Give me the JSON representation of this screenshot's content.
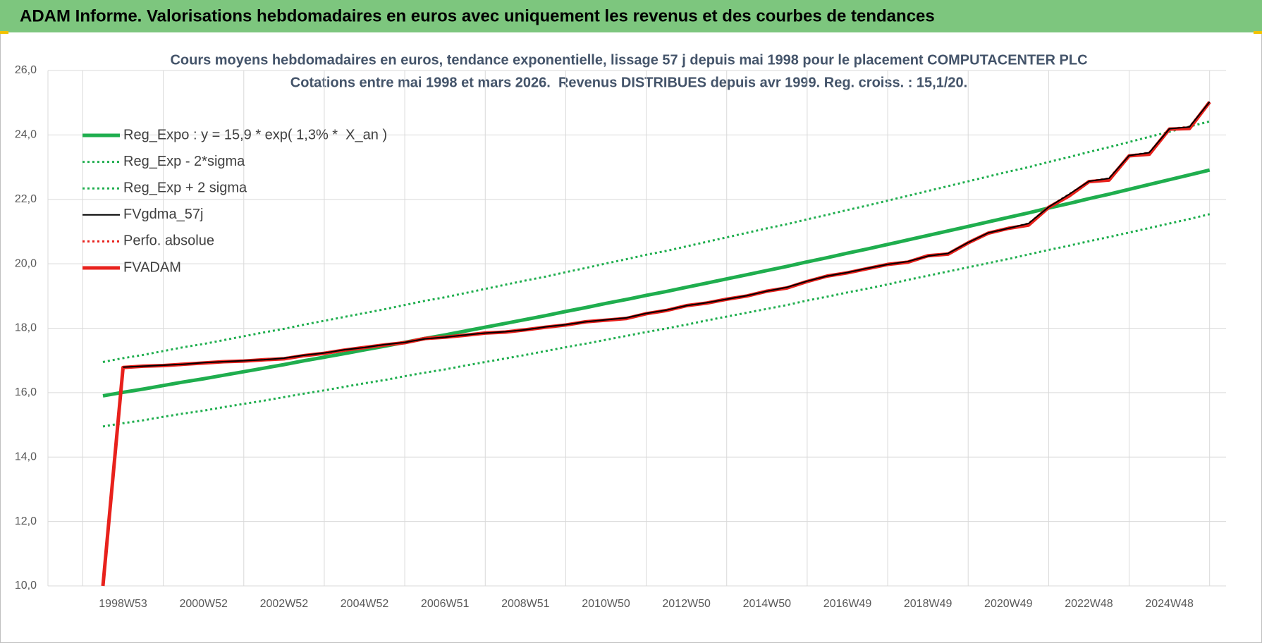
{
  "header": {
    "title": "ADAM Informe. Valorisations hebdomadaires en euros avec uniquement les revenus et des courbes de tendances"
  },
  "chart_data": {
    "type": "line",
    "title": "Cours moyens hebdomadaires en euros, tendance exponentielle, lissage 57 j depuis mai 1998 pour le placement COMPUTACENTER PLC",
    "subtitle": "Cotations entre mai 1998 et mars 2026.  Revenus DISTRIBUES depuis avr 1999. Reg. croiss. : 15,1/20.",
    "categories": [
      null,
      "1998W53",
      null,
      null,
      null,
      "2000W52",
      null,
      null,
      null,
      "2002W52",
      null,
      null,
      null,
      "2004W52",
      null,
      null,
      null,
      "2006W51",
      null,
      null,
      null,
      "2008W51",
      null,
      null,
      null,
      "2010W50",
      null,
      null,
      null,
      "2012W50",
      null,
      null,
      null,
      "2014W50",
      null,
      null,
      null,
      "2016W49",
      null,
      null,
      null,
      "2018W49",
      null,
      null,
      null,
      "2020W49",
      null,
      null,
      null,
      "2022W48",
      null,
      null,
      null,
      "2024W48",
      null,
      null
    ],
    "ylim": [
      10,
      26
    ],
    "yticks": [
      {
        "value": 10,
        "label": "10,0"
      },
      {
        "value": 12,
        "label": "12,0"
      },
      {
        "value": 14,
        "label": "14,0"
      },
      {
        "value": 16,
        "label": "16,0"
      },
      {
        "value": 18,
        "label": "18,0"
      },
      {
        "value": 20,
        "label": "20,0"
      },
      {
        "value": 22,
        "label": "22,0"
      },
      {
        "value": 24,
        "label": "24,0"
      },
      {
        "value": 26,
        "label": "26,0"
      }
    ],
    "grid": true,
    "legend": "top-left",
    "series": [
      {
        "name": "Reg_Expo : y = 15,9 * exp( 1,3% *  X_an )",
        "color": "#1fae4e",
        "line": "thick",
        "values": [
          15.9,
          16.01,
          16.11,
          16.22,
          16.33,
          16.43,
          16.54,
          16.65,
          16.76,
          16.87,
          16.99,
          17.1,
          17.21,
          17.33,
          17.44,
          17.56,
          17.68,
          17.79,
          17.91,
          18.03,
          18.15,
          18.27,
          18.39,
          18.52,
          18.64,
          18.77,
          18.89,
          19.02,
          19.14,
          19.27,
          19.4,
          19.53,
          19.66,
          19.79,
          19.92,
          20.06,
          20.19,
          20.33,
          20.46,
          20.6,
          20.74,
          20.88,
          21.02,
          21.16,
          21.3,
          21.44,
          21.58,
          21.73,
          21.87,
          22.02,
          22.16,
          22.31,
          22.46,
          22.61,
          22.76,
          22.91
        ]
      },
      {
        "name": "Reg_Exp - 2*sigma",
        "color": "#1fae4e",
        "line": "dotted",
        "values": [
          14.95,
          15.05,
          15.14,
          15.25,
          15.35,
          15.44,
          15.55,
          15.65,
          15.75,
          15.86,
          15.97,
          16.07,
          16.18,
          16.29,
          16.39,
          16.51,
          16.62,
          16.72,
          16.84,
          16.95,
          17.06,
          17.17,
          17.29,
          17.41,
          17.52,
          17.64,
          17.76,
          17.88,
          17.99,
          18.11,
          18.24,
          18.36,
          18.48,
          18.6,
          18.72,
          18.86,
          18.98,
          19.11,
          19.23,
          19.36,
          19.5,
          19.63,
          19.76,
          19.89,
          20.02,
          20.15,
          20.29,
          20.43,
          20.56,
          20.7,
          20.83,
          20.97,
          21.11,
          21.25,
          21.39,
          21.54
        ]
      },
      {
        "name": "Reg_Exp + 2 sigma",
        "color": "#1fae4e",
        "line": "dotted",
        "values": [
          16.95,
          17.07,
          17.17,
          17.29,
          17.41,
          17.51,
          17.63,
          17.75,
          17.87,
          17.98,
          18.11,
          18.23,
          18.35,
          18.47,
          18.59,
          18.72,
          18.85,
          18.96,
          19.09,
          19.22,
          19.35,
          19.48,
          19.6,
          19.74,
          19.87,
          20.01,
          20.14,
          20.28,
          20.4,
          20.54,
          20.68,
          20.82,
          20.96,
          21.1,
          21.23,
          21.38,
          21.52,
          21.67,
          21.81,
          21.96,
          22.11,
          22.26,
          22.41,
          22.56,
          22.71,
          22.86,
          23.0,
          23.16,
          23.31,
          23.47,
          23.62,
          23.78,
          23.94,
          24.1,
          24.26,
          24.42
        ]
      },
      {
        "name": "FVgdma_57j",
        "color": "#000000",
        "line": "solid",
        "values": [
          null,
          16.79,
          16.82,
          16.85,
          16.88,
          16.93,
          16.96,
          16.99,
          17.02,
          17.07,
          17.16,
          17.23,
          17.33,
          17.4,
          17.49,
          17.56,
          17.67,
          17.72,
          17.79,
          17.85,
          17.89,
          17.95,
          18.04,
          18.11,
          18.2,
          18.26,
          18.32,
          18.46,
          18.56,
          18.7,
          18.79,
          18.9,
          19.01,
          19.15,
          19.27,
          19.46,
          19.62,
          19.73,
          19.86,
          19.98,
          20.07,
          20.24,
          20.32,
          20.66,
          20.96,
          21.1,
          21.25,
          21.76,
          22.15,
          22.56,
          22.65,
          23.36,
          23.45,
          24.19,
          24.25,
          25.03
        ]
      },
      {
        "name": "Perfo. absolue",
        "color": "#e8211c",
        "line": "dotted",
        "values": [
          null,
          16.79,
          16.82,
          16.85,
          16.88,
          16.93,
          16.96,
          16.99,
          17.02,
          17.07,
          17.16,
          17.23,
          17.33,
          17.4,
          17.49,
          17.56,
          17.67,
          17.72,
          17.79,
          17.85,
          17.89,
          17.95,
          18.04,
          18.11,
          18.2,
          18.26,
          18.32,
          18.46,
          18.56,
          18.7,
          18.79,
          18.9,
          19.01,
          19.15,
          19.27,
          19.46,
          19.62,
          19.73,
          19.86,
          19.98,
          20.07,
          20.24,
          20.32,
          20.66,
          20.96,
          21.1,
          21.25,
          21.76,
          22.15,
          22.56,
          22.65,
          23.36,
          23.45,
          24.19,
          24.25,
          25.03
        ]
      },
      {
        "name": "FVADAM",
        "color": "#e8211c",
        "line": "thick",
        "values": [
          10,
          16.78,
          16.82,
          16.84,
          16.88,
          16.92,
          16.96,
          16.98,
          17.02,
          17.05,
          17.15,
          17.22,
          17.32,
          17.4,
          17.48,
          17.55,
          17.68,
          17.72,
          17.78,
          17.85,
          17.88,
          17.95,
          18.03,
          18.1,
          18.2,
          18.25,
          18.3,
          18.45,
          18.55,
          18.7,
          18.78,
          18.9,
          19.0,
          19.15,
          19.25,
          19.45,
          19.62,
          19.72,
          19.85,
          19.98,
          20.05,
          20.25,
          20.3,
          20.65,
          20.95,
          21.1,
          21.2,
          21.75,
          22.1,
          22.55,
          22.6,
          23.35,
          23.4,
          24.18,
          24.2,
          25.02
        ]
      }
    ]
  }
}
